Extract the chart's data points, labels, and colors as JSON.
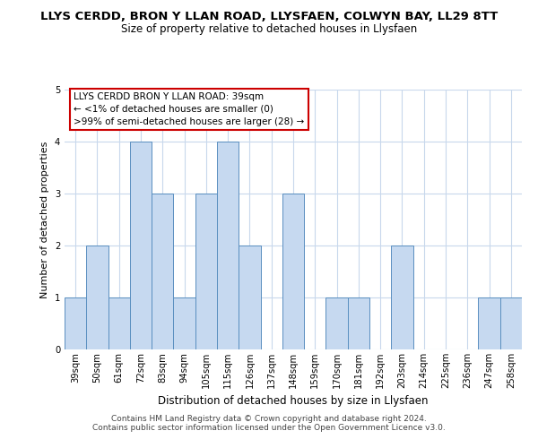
{
  "title": "LLYS CERDD, BRON Y LLAN ROAD, LLYSFAEN, COLWYN BAY, LL29 8TT",
  "subtitle": "Size of property relative to detached houses in Llysfaen",
  "xlabel": "Distribution of detached houses by size in Llysfaen",
  "ylabel": "Number of detached properties",
  "categories": [
    "39sqm",
    "50sqm",
    "61sqm",
    "72sqm",
    "83sqm",
    "94sqm",
    "105sqm",
    "115sqm",
    "126sqm",
    "137sqm",
    "148sqm",
    "159sqm",
    "170sqm",
    "181sqm",
    "192sqm",
    "203sqm",
    "214sqm",
    "225sqm",
    "236sqm",
    "247sqm",
    "258sqm"
  ],
  "values": [
    1,
    2,
    1,
    4,
    3,
    1,
    3,
    4,
    2,
    0,
    3,
    0,
    1,
    1,
    0,
    2,
    0,
    0,
    0,
    1,
    1
  ],
  "bar_color": "#c6d9f0",
  "bar_edge_color": "#5a8fc0",
  "ylim": [
    0,
    5
  ],
  "yticks": [
    0,
    1,
    2,
    3,
    4,
    5
  ],
  "annotation_title": "LLYS CERDD BRON Y LLAN ROAD: 39sqm",
  "annotation_line2": "← <1% of detached houses are smaller (0)",
  "annotation_line3": ">99% of semi-detached houses are larger (28) →",
  "annotation_box_color": "#ffffff",
  "annotation_box_edge_color": "#cc0000",
  "footer1": "Contains HM Land Registry data © Crown copyright and database right 2024.",
  "footer2": "Contains public sector information licensed under the Open Government Licence v3.0.",
  "background_color": "#ffffff",
  "grid_color": "#c8d8ec",
  "title_fontsize": 9.5,
  "subtitle_fontsize": 8.5,
  "tick_fontsize": 7.2,
  "ylabel_fontsize": 8,
  "xlabel_fontsize": 8.5,
  "footer_fontsize": 6.5
}
